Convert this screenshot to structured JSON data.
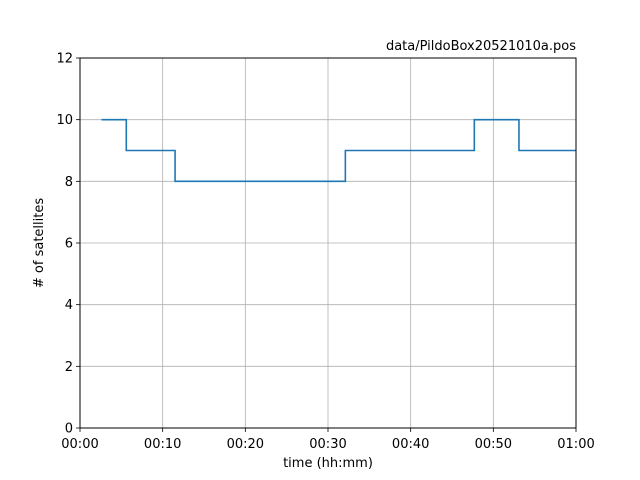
{
  "chart_data": {
    "type": "line",
    "drawstyle": "steps-post",
    "title": "data/PildoBox20521010a.pos",
    "xlabel": "time (hh:mm)",
    "ylabel": "# of satellites",
    "xlim": [
      0,
      60
    ],
    "ylim": [
      0,
      12
    ],
    "grid": true,
    "x_ticks": [
      {
        "value": 0,
        "label": "00:00"
      },
      {
        "value": 10,
        "label": "00:10"
      },
      {
        "value": 20,
        "label": "00:20"
      },
      {
        "value": 30,
        "label": "00:30"
      },
      {
        "value": 40,
        "label": "00:40"
      },
      {
        "value": 50,
        "label": "00:50"
      },
      {
        "value": 60,
        "label": "01:00"
      }
    ],
    "y_ticks": [
      {
        "value": 0,
        "label": "0"
      },
      {
        "value": 2,
        "label": "2"
      },
      {
        "value": 4,
        "label": "4"
      },
      {
        "value": 6,
        "label": "6"
      },
      {
        "value": 8,
        "label": "8"
      },
      {
        "value": 10,
        "label": "10"
      },
      {
        "value": 12,
        "label": "12"
      }
    ],
    "series": [
      {
        "color": "#1f77b4",
        "x": [
          2.6,
          5.6,
          11.5,
          32.1,
          47.7,
          53.1,
          60
        ],
        "y": [
          10,
          9,
          8,
          9,
          10,
          9,
          9
        ]
      }
    ]
  }
}
